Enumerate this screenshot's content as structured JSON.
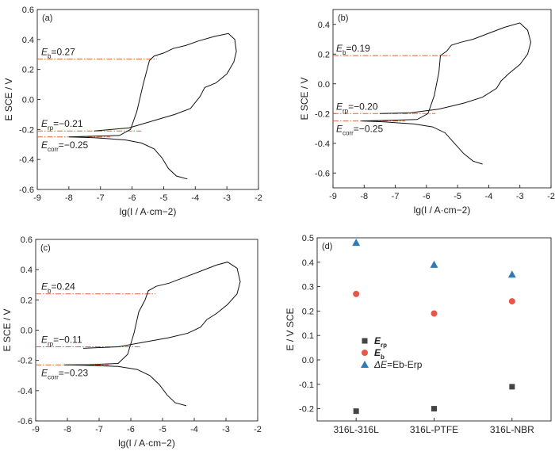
{
  "chart_data": [
    {
      "panel": "(a)",
      "type": "line",
      "xlabel": "lg(I / A·cm−2)",
      "ylabel": "E SCE / V",
      "xlim": [
        -9,
        -2
      ],
      "ylim": [
        -0.6,
        0.6
      ],
      "xticks": [
        "-9",
        "-8",
        "-7",
        "-6",
        "-5",
        "-4",
        "-3",
        "-2"
      ],
      "yticks": [
        "0.6",
        "0.4",
        "0.2",
        "0.0",
        "-0.2",
        "-0.4",
        "-0.6"
      ],
      "annotations": [
        {
          "symbol": "E",
          "sub": "b",
          "text": "=0.27",
          "value": 0.27
        },
        {
          "symbol": "E",
          "sub": "rp",
          "text": "=−0.21",
          "value": -0.21
        },
        {
          "symbol": "E",
          "sub": "corr",
          "text": "=−0.25",
          "value": -0.25
        }
      ],
      "curve": [
        [
          -4.25,
          -0.53
        ],
        [
          -4.6,
          -0.51
        ],
        [
          -4.85,
          -0.46
        ],
        [
          -5.05,
          -0.39
        ],
        [
          -5.3,
          -0.33
        ],
        [
          -5.7,
          -0.29
        ],
        [
          -6.2,
          -0.27
        ],
        [
          -7.2,
          -0.255
        ],
        [
          -8.0,
          -0.25
        ],
        [
          -7.2,
          -0.245
        ],
        [
          -6.4,
          -0.24
        ],
        [
          -6.05,
          -0.2
        ],
        [
          -5.85,
          -0.08
        ],
        [
          -5.65,
          0.1
        ],
        [
          -5.45,
          0.26
        ],
        [
          -5.3,
          0.29
        ],
        [
          -5.0,
          0.31
        ],
        [
          -4.7,
          0.34
        ],
        [
          -4.3,
          0.36
        ],
        [
          -3.9,
          0.39
        ],
        [
          -3.4,
          0.42
        ],
        [
          -2.95,
          0.44
        ],
        [
          -2.75,
          0.4
        ],
        [
          -2.7,
          0.32
        ],
        [
          -2.78,
          0.25
        ],
        [
          -3.0,
          0.17
        ],
        [
          -3.35,
          0.11
        ],
        [
          -3.7,
          0.08
        ],
        [
          -3.85,
          0.02
        ],
        [
          -4.15,
          -0.06
        ],
        [
          -4.65,
          -0.1
        ],
        [
          -5.3,
          -0.14
        ],
        [
          -6.1,
          -0.19
        ],
        [
          -7.2,
          -0.21
        ]
      ]
    },
    {
      "panel": "(b)",
      "type": "line",
      "xlabel": "lg(I / A·cm−2)",
      "ylabel": "E SCE / V",
      "xlim": [
        -9,
        -2
      ],
      "ylim": [
        -0.7,
        0.5
      ],
      "xticks": [
        "-9",
        "-8",
        "-7",
        "-6",
        "-5",
        "-4",
        "-3",
        "-2"
      ],
      "yticks": [
        "0.4",
        "0.2",
        "0.0",
        "-0.2",
        "-0.4",
        "-0.6"
      ],
      "annotations": [
        {
          "symbol": "E",
          "sub": "b",
          "text": "=0.19",
          "value": 0.19
        },
        {
          "symbol": "E",
          "sub": "rp",
          "text": "=−0.20",
          "value": -0.2
        },
        {
          "symbol": "E",
          "sub": "corr",
          "text": "=−0.25",
          "value": -0.25
        }
      ],
      "curve": [
        [
          -4.2,
          -0.54
        ],
        [
          -4.5,
          -0.52
        ],
        [
          -4.8,
          -0.47
        ],
        [
          -5.1,
          -0.4
        ],
        [
          -5.4,
          -0.33
        ],
        [
          -5.8,
          -0.29
        ],
        [
          -6.4,
          -0.27
        ],
        [
          -7.4,
          -0.255
        ],
        [
          -8.1,
          -0.25
        ],
        [
          -7.2,
          -0.245
        ],
        [
          -6.3,
          -0.24
        ],
        [
          -5.95,
          -0.2
        ],
        [
          -5.75,
          -0.08
        ],
        [
          -5.6,
          0.08
        ],
        [
          -5.55,
          0.19
        ],
        [
          -5.35,
          0.22
        ],
        [
          -5.2,
          0.26
        ],
        [
          -4.9,
          0.28
        ],
        [
          -4.5,
          0.3
        ],
        [
          -4.0,
          0.34
        ],
        [
          -3.5,
          0.38
        ],
        [
          -3.0,
          0.41
        ],
        [
          -2.75,
          0.36
        ],
        [
          -2.65,
          0.28
        ],
        [
          -2.75,
          0.2
        ],
        [
          -3.0,
          0.13
        ],
        [
          -3.35,
          0.07
        ],
        [
          -3.6,
          0.02
        ],
        [
          -3.75,
          -0.03
        ],
        [
          -4.2,
          -0.09
        ],
        [
          -4.8,
          -0.13
        ],
        [
          -5.6,
          -0.17
        ],
        [
          -6.5,
          -0.195
        ],
        [
          -7.5,
          -0.2
        ]
      ]
    },
    {
      "panel": "(c)",
      "type": "line",
      "xlabel": "lg(I / A·cm−2)",
      "ylabel": "E SCE / V",
      "xlim": [
        -9,
        -2
      ],
      "ylim": [
        -0.6,
        0.6
      ],
      "xticks": [
        "-9",
        "-8",
        "-7",
        "-6",
        "-5",
        "-4",
        "-3",
        "-2"
      ],
      "yticks": [
        "0.6",
        "0.4",
        "0.2",
        "0.0",
        "-0.2",
        "-0.4",
        "-0.6"
      ],
      "annotations": [
        {
          "symbol": "E",
          "sub": "b",
          "text": "=0.24",
          "value": 0.24
        },
        {
          "symbol": "E",
          "sub": "rp",
          "text": "=−0.11",
          "value": -0.11
        },
        {
          "symbol": "E",
          "sub": "corr",
          "text": "=−0.23",
          "value": -0.23
        }
      ],
      "curve": [
        [
          -4.25,
          -0.5
        ],
        [
          -4.6,
          -0.48
        ],
        [
          -4.85,
          -0.43
        ],
        [
          -5.1,
          -0.36
        ],
        [
          -5.4,
          -0.3
        ],
        [
          -5.8,
          -0.26
        ],
        [
          -6.4,
          -0.24
        ],
        [
          -7.5,
          -0.232
        ],
        [
          -8.1,
          -0.23
        ],
        [
          -7.3,
          -0.228
        ],
        [
          -6.4,
          -0.22
        ],
        [
          -6.1,
          -0.16
        ],
        [
          -5.9,
          -0.02
        ],
        [
          -5.75,
          0.12
        ],
        [
          -5.55,
          0.2
        ],
        [
          -5.45,
          0.26
        ],
        [
          -5.2,
          0.29
        ],
        [
          -4.8,
          0.31
        ],
        [
          -4.3,
          0.35
        ],
        [
          -3.8,
          0.39
        ],
        [
          -3.3,
          0.43
        ],
        [
          -2.95,
          0.45
        ],
        [
          -2.65,
          0.41
        ],
        [
          -2.55,
          0.32
        ],
        [
          -2.65,
          0.24
        ],
        [
          -2.95,
          0.17
        ],
        [
          -3.3,
          0.11
        ],
        [
          -3.6,
          0.07
        ],
        [
          -3.8,
          0.02
        ],
        [
          -4.2,
          -0.02
        ],
        [
          -4.8,
          -0.05
        ],
        [
          -5.6,
          -0.08
        ],
        [
          -6.4,
          -0.11
        ],
        [
          -7.5,
          -0.12
        ]
      ]
    },
    {
      "panel": "(d)",
      "type": "scatter",
      "ylabel": "E / V SCE",
      "ylim": [
        -0.25,
        0.5
      ],
      "categories": [
        "316L-316L",
        "316L-PTFE",
        "316L-NBR"
      ],
      "yticks": [
        "0.5",
        "0.4",
        "0.3",
        "0.2",
        "0.1",
        "0.0",
        "-0.1",
        "-0.2"
      ],
      "series": [
        {
          "name": "E rp",
          "marker": "square",
          "color": "#444444",
          "values": [
            -0.21,
            -0.2,
            -0.11
          ]
        },
        {
          "name": "E b",
          "marker": "circle",
          "color": "#e5574a",
          "values": [
            0.27,
            0.19,
            0.24
          ]
        },
        {
          "name": "ΔE=Eb-Erp",
          "marker": "triangle",
          "color": "#2e7bb8",
          "values": [
            0.48,
            0.39,
            0.35
          ]
        }
      ],
      "legend": [
        {
          "symbol": "E",
          "sub": "rp",
          "extra": ""
        },
        {
          "symbol": "E",
          "sub": "b",
          "extra": ""
        },
        {
          "symbol": "ΔE",
          "sub": "",
          "extra": "=Eb-Erp"
        }
      ]
    }
  ]
}
